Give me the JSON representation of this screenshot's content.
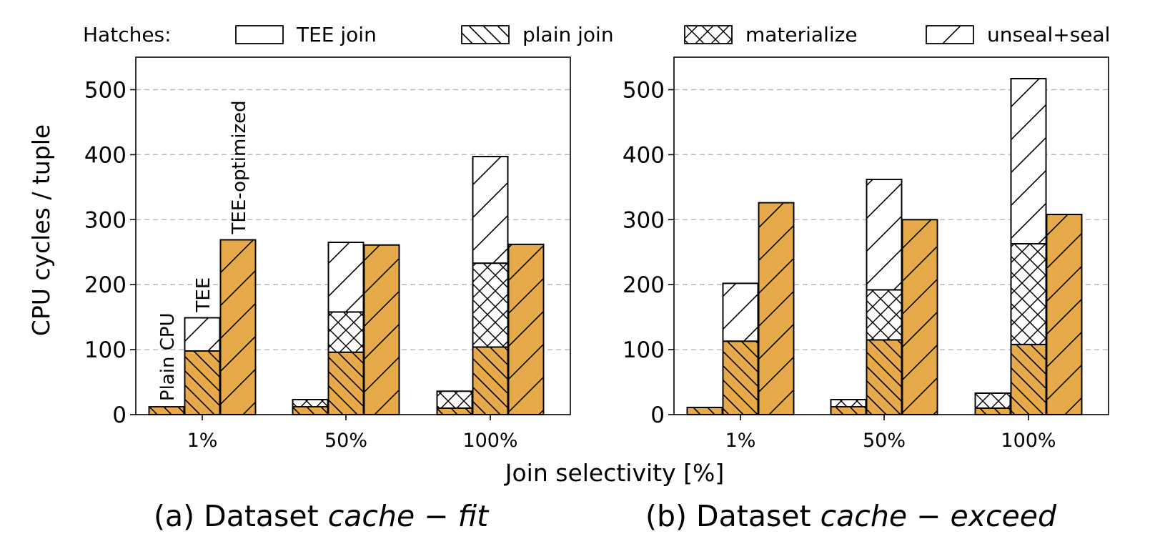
{
  "legend": {
    "title": "Hatches:",
    "items": [
      {
        "label": "TEE join",
        "hatch": "none"
      },
      {
        "label": "plain join",
        "hatch": "backslash"
      },
      {
        "label": "materialize",
        "hatch": "cross"
      },
      {
        "label": "unseal+seal",
        "hatch": "slash"
      }
    ]
  },
  "colors": {
    "bar_fill": "#e7aa4a",
    "white": "#ffffff",
    "edge": "#000000",
    "grid": "#b0b0b0"
  },
  "xlabel": "Join selectivity [%]",
  "captions": [
    {
      "prefix": "(a) Dataset ",
      "math": "cache − fit"
    },
    {
      "prefix": "(b) Dataset ",
      "math": "cache − exceed"
    }
  ],
  "chart_data": [
    {
      "type": "bar",
      "stacked": true,
      "ylabel": "CPU cycles / tuple",
      "ylim": [
        0,
        550
      ],
      "yticks": [
        "0",
        "100",
        "200",
        "300",
        "400",
        "500"
      ],
      "grid": "horizontal-dashed",
      "categories": [
        "1%",
        "50%",
        "100%"
      ],
      "bar_labels": [
        "Plain CPU",
        "TEE",
        "TEE-optimized"
      ],
      "bars": [
        {
          "category": "1%",
          "system": "Plain CPU",
          "segments": [
            {
              "component": "plain join",
              "value": 12,
              "fill": "orange"
            }
          ]
        },
        {
          "category": "1%",
          "system": "TEE",
          "segments": [
            {
              "component": "plain join",
              "value": 98,
              "fill": "orange"
            },
            {
              "component": "unseal+seal",
              "value": 51,
              "fill": "white"
            }
          ]
        },
        {
          "category": "1%",
          "system": "TEE-optimized",
          "segments": [
            {
              "component": "unseal+seal",
              "value": 269,
              "fill": "orange"
            }
          ]
        },
        {
          "category": "50%",
          "system": "Plain CPU",
          "segments": [
            {
              "component": "plain join",
              "value": 12,
              "fill": "orange"
            },
            {
              "component": "materialize",
              "value": 11,
              "fill": "white"
            }
          ]
        },
        {
          "category": "50%",
          "system": "TEE",
          "segments": [
            {
              "component": "plain join",
              "value": 96,
              "fill": "orange"
            },
            {
              "component": "materialize",
              "value": 62,
              "fill": "white"
            },
            {
              "component": "unseal+seal",
              "value": 107,
              "fill": "white"
            }
          ]
        },
        {
          "category": "50%",
          "system": "TEE-optimized",
          "segments": [
            {
              "component": "unseal+seal",
              "value": 261,
              "fill": "orange"
            }
          ]
        },
        {
          "category": "100%",
          "system": "Plain CPU",
          "segments": [
            {
              "component": "plain join",
              "value": 10,
              "fill": "orange"
            },
            {
              "component": "materialize",
              "value": 26,
              "fill": "white"
            }
          ]
        },
        {
          "category": "100%",
          "system": "TEE",
          "segments": [
            {
              "component": "plain join",
              "value": 104,
              "fill": "orange"
            },
            {
              "component": "materialize",
              "value": 129,
              "fill": "white"
            },
            {
              "component": "unseal+seal",
              "value": 164,
              "fill": "white"
            }
          ]
        },
        {
          "category": "100%",
          "system": "TEE-optimized",
          "segments": [
            {
              "component": "unseal+seal",
              "value": 262,
              "fill": "orange"
            }
          ]
        }
      ]
    },
    {
      "type": "bar",
      "stacked": true,
      "ylabel": "",
      "ylim": [
        0,
        550
      ],
      "yticks": [
        "0",
        "100",
        "200",
        "300",
        "400",
        "500"
      ],
      "grid": "horizontal-dashed",
      "categories": [
        "1%",
        "50%",
        "100%"
      ],
      "bar_labels": [],
      "bars": [
        {
          "category": "1%",
          "system": "Plain CPU",
          "segments": [
            {
              "component": "plain join",
              "value": 11,
              "fill": "orange"
            }
          ]
        },
        {
          "category": "1%",
          "system": "TEE",
          "segments": [
            {
              "component": "plain join",
              "value": 113,
              "fill": "orange"
            },
            {
              "component": "unseal+seal",
              "value": 89,
              "fill": "white"
            }
          ]
        },
        {
          "category": "1%",
          "system": "TEE-optimized",
          "segments": [
            {
              "component": "unseal+seal",
              "value": 326,
              "fill": "orange"
            }
          ]
        },
        {
          "category": "50%",
          "system": "Plain CPU",
          "segments": [
            {
              "component": "plain join",
              "value": 12,
              "fill": "orange"
            },
            {
              "component": "materialize",
              "value": 11,
              "fill": "white"
            }
          ]
        },
        {
          "category": "50%",
          "system": "TEE",
          "segments": [
            {
              "component": "plain join",
              "value": 115,
              "fill": "orange"
            },
            {
              "component": "materialize",
              "value": 77,
              "fill": "white"
            },
            {
              "component": "unseal+seal",
              "value": 170,
              "fill": "white"
            }
          ]
        },
        {
          "category": "50%",
          "system": "TEE-optimized",
          "segments": [
            {
              "component": "unseal+seal",
              "value": 300,
              "fill": "orange"
            }
          ]
        },
        {
          "category": "100%",
          "system": "Plain CPU",
          "segments": [
            {
              "component": "plain join",
              "value": 10,
              "fill": "orange"
            },
            {
              "component": "materialize",
              "value": 23,
              "fill": "white"
            }
          ]
        },
        {
          "category": "100%",
          "system": "TEE",
          "segments": [
            {
              "component": "plain join",
              "value": 108,
              "fill": "orange"
            },
            {
              "component": "materialize",
              "value": 155,
              "fill": "white"
            },
            {
              "component": "unseal+seal",
              "value": 254,
              "fill": "white"
            }
          ]
        },
        {
          "category": "100%",
          "system": "TEE-optimized",
          "segments": [
            {
              "component": "unseal+seal",
              "value": 308,
              "fill": "orange"
            }
          ]
        }
      ]
    }
  ]
}
